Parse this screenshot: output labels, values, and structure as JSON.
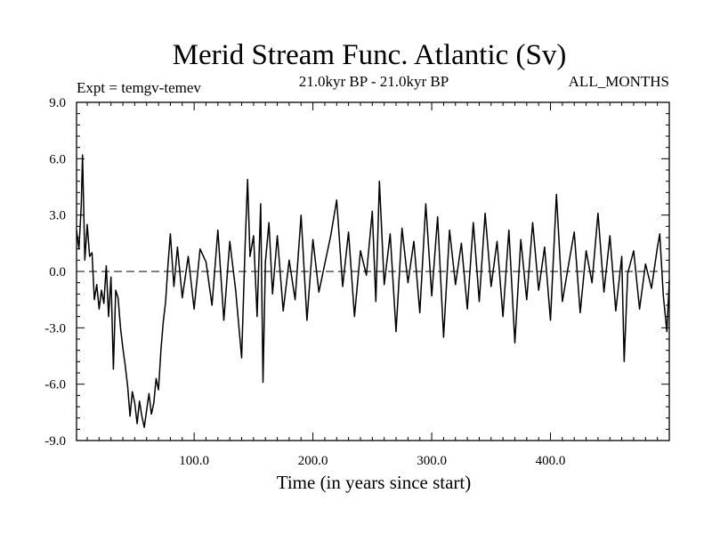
{
  "chart_data": {
    "type": "line",
    "title": "Merid Stream Func. Atlantic (Sv)",
    "subtitle_left": "Expt = temgv-temev",
    "subtitle_center": "21.0kyr BP - 21.0kyr BP",
    "subtitle_right": "ALL_MONTHS",
    "xlabel": "Time (in years since start)",
    "ylabel": "",
    "xlim": [
      1,
      500
    ],
    "ylim": [
      -9,
      9
    ],
    "xticks": [
      100,
      200,
      300,
      400
    ],
    "xtick_labels": [
      "100.0",
      "200.0",
      "300.0",
      "400.0"
    ],
    "yticks": [
      -9,
      -6,
      -3,
      0,
      3,
      6,
      9
    ],
    "ytick_labels": [
      "-9.0",
      "-6.0",
      "-3.0",
      "0.0",
      "3.0",
      "6.0",
      "9.0"
    ],
    "zero_line": "dashed",
    "grid": false,
    "series": [
      {
        "color": "#000000",
        "x": [
          1,
          3,
          5,
          6,
          7,
          8,
          10,
          12,
          14,
          16,
          18,
          20,
          22,
          24,
          26,
          28,
          30,
          32,
          34,
          36,
          38,
          40,
          42,
          44,
          46,
          48,
          50,
          52,
          54,
          56,
          58,
          60,
          62,
          64,
          66,
          68,
          70,
          72,
          74,
          76,
          78,
          80,
          83,
          86,
          90,
          95,
          100,
          105,
          110,
          115,
          120,
          125,
          130,
          135,
          140,
          143,
          145,
          147,
          150,
          153,
          156,
          158,
          160,
          163,
          166,
          170,
          175,
          180,
          185,
          190,
          195,
          200,
          205,
          210,
          215,
          220,
          225,
          230,
          235,
          240,
          245,
          250,
          253,
          256,
          260,
          265,
          270,
          275,
          280,
          285,
          290,
          295,
          300,
          305,
          310,
          315,
          320,
          325,
          330,
          335,
          340,
          345,
          350,
          355,
          360,
          365,
          370,
          375,
          380,
          385,
          390,
          395,
          400,
          405,
          410,
          415,
          420,
          425,
          430,
          435,
          440,
          445,
          450,
          455,
          460,
          462,
          465,
          470,
          475,
          480,
          485,
          490,
          492,
          495,
          498,
          500
        ],
        "values": [
          2.2,
          1.2,
          3.5,
          6.2,
          3.5,
          0.6,
          2.5,
          0.8,
          1.0,
          -1.5,
          -0.7,
          -2.0,
          -1.0,
          -1.7,
          0.3,
          -2.4,
          -0.3,
          -5.2,
          -1.0,
          -1.4,
          -3.0,
          -4.1,
          -5.0,
          -6.1,
          -7.7,
          -6.4,
          -7.0,
          -8.1,
          -6.9,
          -7.7,
          -8.3,
          -7.4,
          -6.5,
          -7.6,
          -7.0,
          -5.7,
          -6.3,
          -4.2,
          -2.7,
          -1.6,
          0.4,
          2.0,
          -0.8,
          1.3,
          -1.4,
          0.8,
          -2.0,
          1.2,
          0.5,
          -1.8,
          2.2,
          -2.6,
          1.6,
          -1.0,
          -4.6,
          1.5,
          4.9,
          0.8,
          1.9,
          -2.4,
          3.6,
          -5.9,
          0.5,
          2.6,
          -1.2,
          1.9,
          -2.1,
          0.6,
          -1.5,
          3.0,
          -2.6,
          1.7,
          -1.1,
          0.4,
          1.9,
          3.8,
          -0.8,
          2.1,
          -2.4,
          1.1,
          -0.2,
          3.2,
          -1.6,
          4.8,
          -0.7,
          2.0,
          -3.2,
          2.3,
          -0.6,
          1.6,
          -2.2,
          3.6,
          -1.3,
          2.9,
          -3.5,
          2.2,
          -0.7,
          1.5,
          -2.0,
          2.6,
          -1.6,
          3.1,
          -0.8,
          1.6,
          -2.4,
          2.2,
          -3.8,
          1.7,
          -1.5,
          2.6,
          -1.0,
          1.3,
          -2.6,
          4.1,
          -1.6,
          0.3,
          2.1,
          -2.2,
          1.1,
          -0.6,
          3.1,
          -1.1,
          1.9,
          -2.1,
          0.8,
          -4.8,
          -0.1,
          1.1,
          -2.0,
          0.4,
          -0.9,
          1.3,
          2.0,
          -1.3,
          -3.2,
          -0.5
        ]
      }
    ]
  }
}
